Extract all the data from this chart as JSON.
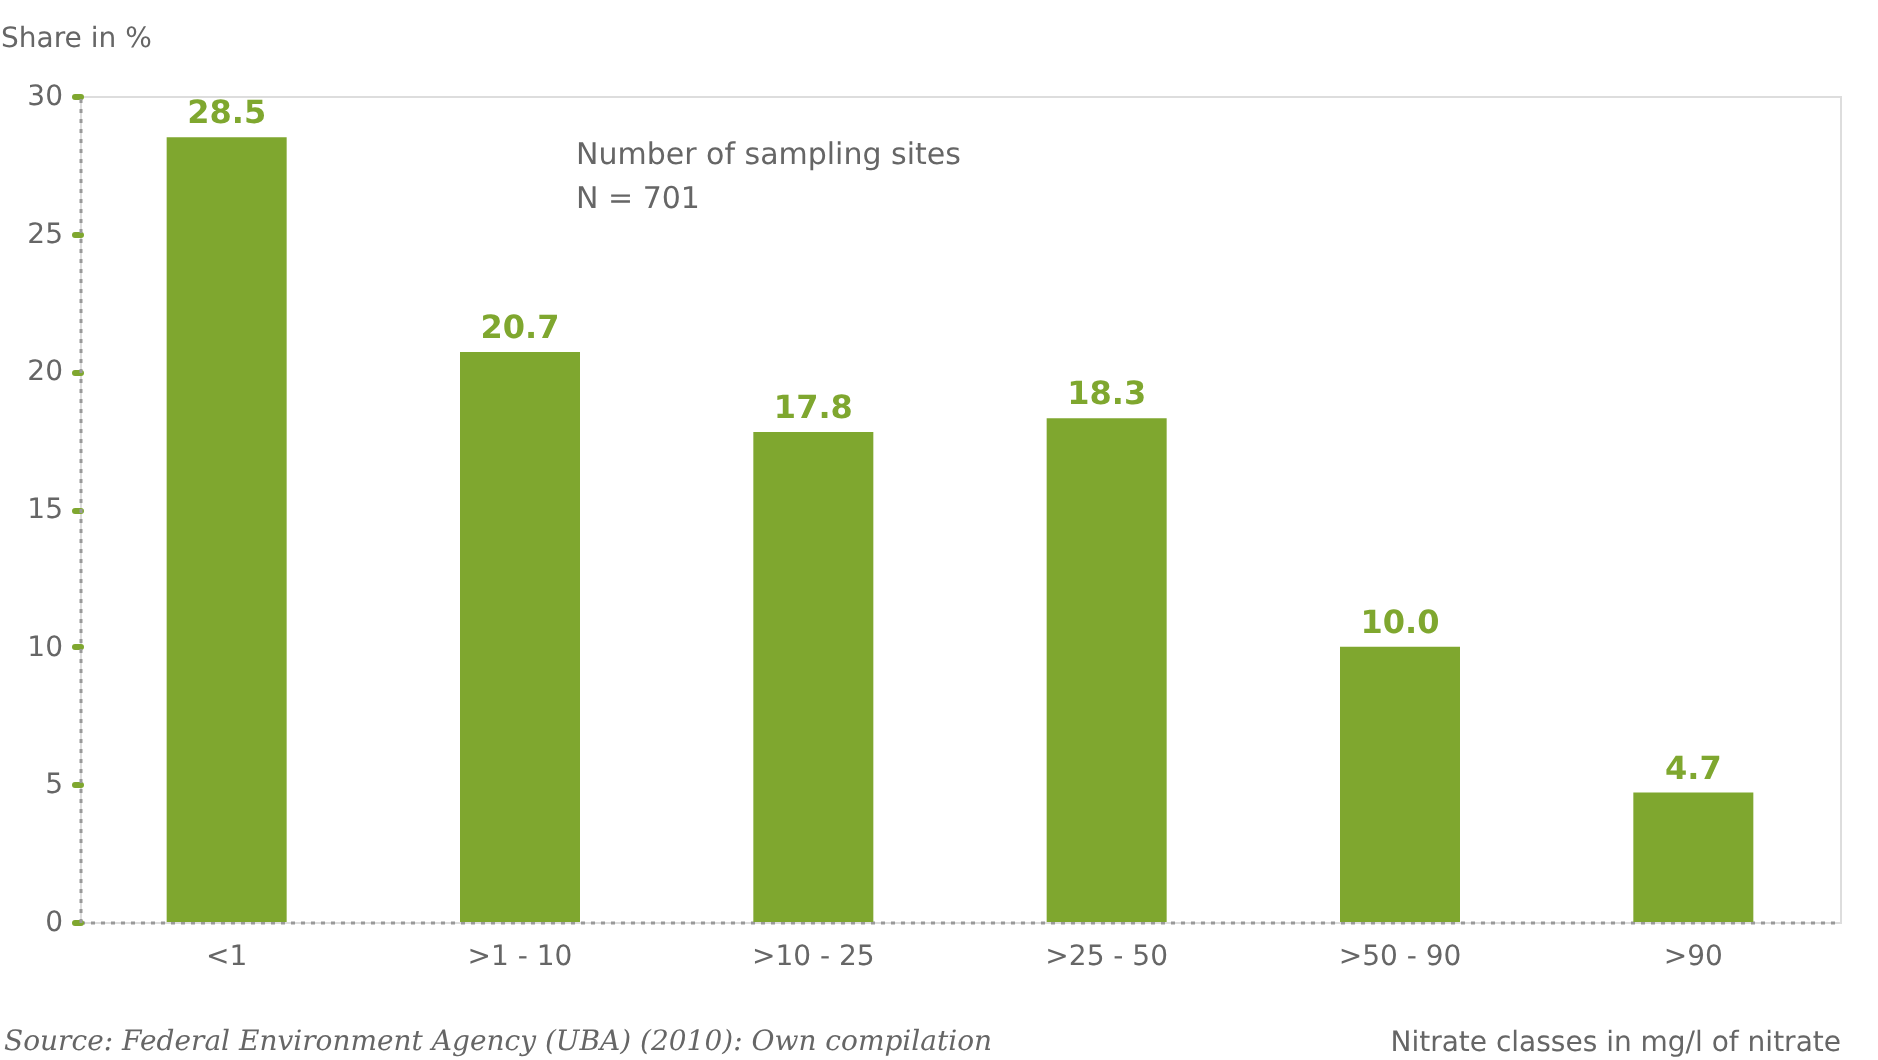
{
  "chart_data": {
    "type": "bar",
    "categories": [
      "<1",
      ">1 - 10",
      ">10 - 25",
      ">25 - 50",
      ">50 - 90",
      ">90"
    ],
    "values": [
      28.5,
      20.7,
      17.8,
      18.3,
      10.0,
      4.7
    ],
    "value_labels": [
      "28.5",
      "20.7",
      "17.8",
      "18.3",
      "10.0",
      "4.7"
    ],
    "color": "#7fa72f",
    "ylabel": "Share in %",
    "xlabel": "Nitrate classes in mg/l of nitrate",
    "ylim": [
      0,
      30
    ],
    "yticks": [
      0,
      5,
      10,
      15,
      20,
      25,
      30
    ],
    "annotations": [
      "Number of sampling sites\nN = 701",
      "Source: Federal Environment Agency (UBA) (2010): Own compilation"
    ],
    "grid": false
  }
}
